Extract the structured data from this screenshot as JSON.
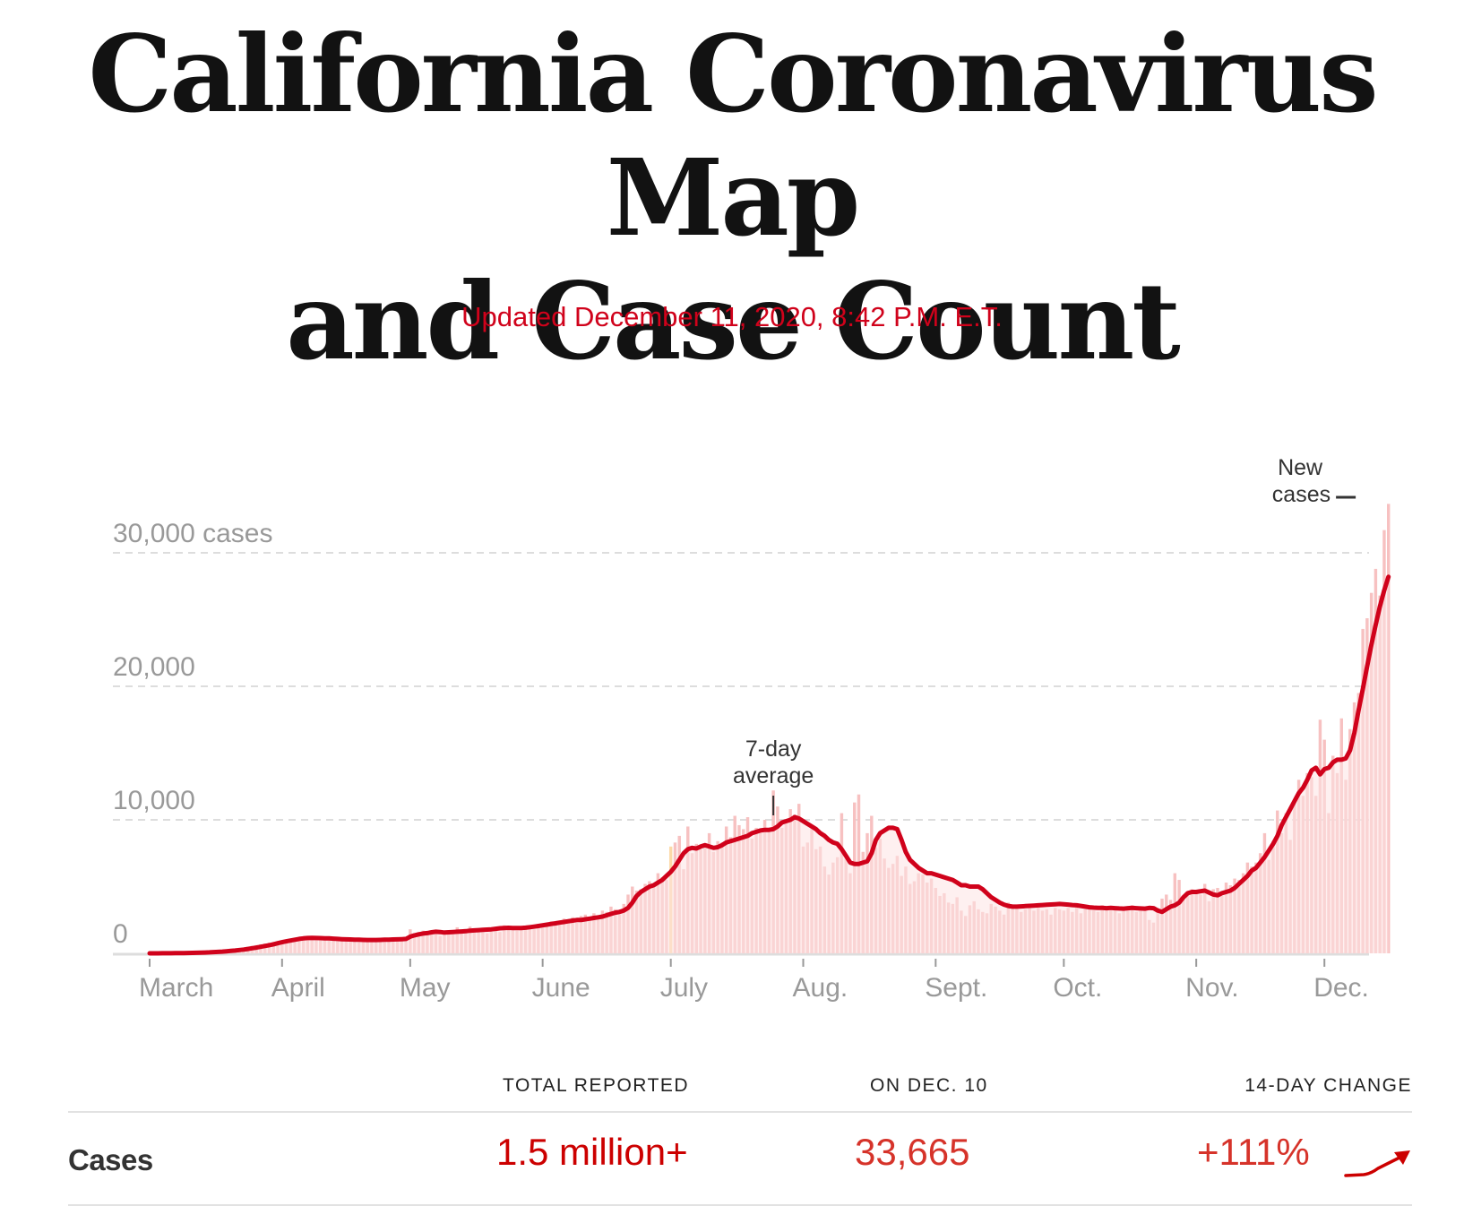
{
  "page": {
    "title_line1": "California Coronavirus Map",
    "title_line2": "and Case Count",
    "updated": "Updated December 11, 2020, 8:42 P.M. E.T."
  },
  "colors": {
    "accent_red": "#d0021b",
    "bar_fill": "#f7c1c1",
    "under_curve_fill": "#fde3e3",
    "highlight_bar": "#fcd9a8",
    "grid": "#dddddd",
    "axis_text": "#999999"
  },
  "chart_data": {
    "type": "bar",
    "title": "",
    "xlabel": "",
    "ylabel": "cases",
    "ylim": [
      0,
      34000
    ],
    "grid": true,
    "start_date": "March 1",
    "end_date": "December 10",
    "y_ticks": [
      {
        "value": 0,
        "label": "0"
      },
      {
        "value": 10000,
        "label": "10,000"
      },
      {
        "value": 20000,
        "label": "20,000"
      },
      {
        "value": 30000,
        "label": "30,000 cases"
      }
    ],
    "x_ticks": [
      {
        "day": 0,
        "label": "March"
      },
      {
        "day": 31,
        "label": "April"
      },
      {
        "day": 61,
        "label": "May"
      },
      {
        "day": 92,
        "label": "June"
      },
      {
        "day": 122,
        "label": "July"
      },
      {
        "day": 153,
        "label": "Aug."
      },
      {
        "day": 184,
        "label": "Sept."
      },
      {
        "day": 214,
        "label": "Oct."
      },
      {
        "day": 245,
        "label": "Nov."
      },
      {
        "day": 275,
        "label": "Dec."
      }
    ],
    "annotations": [
      {
        "text_lines": [
          "7-day",
          "average"
        ],
        "day": 146,
        "series": "7-day average"
      },
      {
        "text_lines": [
          "New",
          "cases"
        ],
        "day": 284,
        "series": "New cases"
      }
    ],
    "highlight_day": 122,
    "series": [
      {
        "name": "New cases",
        "kind": "bar",
        "values": [
          0,
          0,
          0,
          10,
          10,
          10,
          20,
          20,
          30,
          30,
          40,
          60,
          70,
          90,
          110,
          130,
          160,
          190,
          230,
          270,
          320,
          380,
          440,
          500,
          560,
          620,
          680,
          740,
          800,
          860,
          900,
          950,
          1000,
          1050,
          1100,
          1150,
          1100,
          1300,
          1200,
          1250,
          1150,
          1200,
          1250,
          1100,
          1200,
          1050,
          1000,
          1100,
          1050,
          980,
          1100,
          1000,
          1030,
          950,
          1100,
          1050,
          1000,
          1150,
          1200,
          1000,
          950,
          1800,
          1500,
          1600,
          1700,
          1500,
          1550,
          1750,
          1300,
          1650,
          1700,
          1400,
          1950,
          1750,
          1600,
          2000,
          1700,
          1650,
          1800,
          1500,
          1900,
          1750,
          1600,
          2100,
          1800,
          1900,
          1700,
          2000,
          1850,
          1950,
          1800,
          2200,
          2100,
          2000,
          2400,
          2300,
          2200,
          2600,
          2500,
          2700,
          2300,
          2800,
          2900,
          2600,
          3000,
          2700,
          3200,
          3100,
          3500,
          3300,
          2900,
          3700,
          4400,
          5000,
          4700,
          4800,
          5200,
          5400,
          5100,
          6000,
          5700,
          5500,
          8000,
          8300,
          8800,
          6300,
          9500,
          7500,
          8200,
          7800,
          8100,
          9000,
          7600,
          8400,
          8300,
          9500,
          8700,
          10300,
          9600,
          9300,
          10200,
          8600,
          9400,
          9000,
          10000,
          9200,
          12200,
          11000,
          9400,
          9800,
          10800,
          10400,
          11200,
          8000,
          8300,
          9400,
          7800,
          8000,
          6500,
          5900,
          6800,
          7200,
          10500,
          7100,
          6000,
          11300,
          11900,
          7600,
          9000,
          10300,
          7900,
          8600,
          7100,
          6400,
          6700,
          7300,
          5800,
          6500,
          5200,
          5400,
          6000,
          5900,
          5300,
          5600,
          4900,
          4300,
          4500,
          3800,
          3700,
          4200,
          3200,
          2800,
          3600,
          3900,
          3300,
          3100,
          3000,
          3700,
          3500,
          3200,
          2900,
          3800,
          3400,
          3600,
          3100,
          3300,
          3700,
          3200,
          3500,
          3200,
          3300,
          2900,
          3400,
          3300,
          3200,
          3400,
          3100,
          3600,
          3000,
          3300,
          3400,
          3200,
          3100,
          3600,
          3300,
          3200,
          3500,
          3000,
          3400,
          3300,
          3600,
          3100,
          3200,
          3500,
          2500,
          2300,
          3400,
          4100,
          4400,
          4000,
          6000,
          5500,
          4300,
          4500,
          4800,
          4500,
          4400,
          5200,
          3900,
          4800,
          4900,
          4300,
          5300,
          5100,
          5600,
          5500,
          6000,
          6800,
          6500,
          6800,
          7500,
          9000,
          7000,
          8400,
          10700,
          9000,
          10500,
          8500,
          11400,
          13000,
          11800,
          13500,
          13200,
          11800,
          17500,
          16000,
          10500,
          14800,
          13500,
          17600,
          13000,
          16800,
          18800,
          19500,
          24300,
          25100,
          27000,
          28800,
          26800,
          31700,
          33665
        ]
      },
      {
        "name": "7-day average",
        "kind": "line",
        "values": [
          0,
          0,
          0,
          5,
          8,
          10,
          14,
          18,
          22,
          28,
          34,
          42,
          50,
          62,
          76,
          92,
          110,
          130,
          155,
          180,
          210,
          245,
          285,
          330,
          380,
          430,
          490,
          550,
          610,
          680,
          760,
          830,
          900,
          960,
          1020,
          1080,
          1120,
          1150,
          1160,
          1150,
          1140,
          1130,
          1120,
          1100,
          1080,
          1060,
          1050,
          1040,
          1030,
          1020,
          1010,
          1000,
          1000,
          1000,
          1010,
          1020,
          1030,
          1040,
          1050,
          1060,
          1080,
          1250,
          1350,
          1420,
          1480,
          1520,
          1580,
          1620,
          1600,
          1560,
          1580,
          1600,
          1620,
          1640,
          1660,
          1700,
          1720,
          1740,
          1760,
          1780,
          1800,
          1840,
          1880,
          1900,
          1910,
          1900,
          1890,
          1900,
          1920,
          1960,
          2000,
          2050,
          2100,
          2150,
          2200,
          2250,
          2300,
          2350,
          2400,
          2450,
          2500,
          2500,
          2550,
          2600,
          2650,
          2700,
          2750,
          2850,
          2950,
          3050,
          3100,
          3200,
          3400,
          3800,
          4300,
          4600,
          4800,
          5000,
          5100,
          5300,
          5500,
          5800,
          6100,
          6500,
          7000,
          7500,
          7800,
          7900,
          7850,
          8000,
          8100,
          8000,
          7900,
          7950,
          8100,
          8300,
          8400,
          8500,
          8600,
          8700,
          8800,
          9000,
          9100,
          9200,
          9250,
          9250,
          9300,
          9500,
          9800,
          9900,
          10000,
          10200,
          10100,
          9900,
          9700,
          9500,
          9300,
          9000,
          8800,
          8500,
          8300,
          8200,
          7800,
          7300,
          6800,
          6700,
          6700,
          6800,
          6900,
          7500,
          8500,
          9000,
          9200,
          9400,
          9400,
          9300,
          8500,
          7600,
          7000,
          6700,
          6400,
          6200,
          6000,
          6000,
          5900,
          5800,
          5700,
          5600,
          5500,
          5300,
          5100,
          5100,
          5000,
          5000,
          5000,
          4800,
          4500,
          4200,
          4000,
          3800,
          3650,
          3550,
          3500,
          3500,
          3520,
          3540,
          3560,
          3580,
          3600,
          3620,
          3640,
          3660,
          3680,
          3700,
          3680,
          3650,
          3620,
          3600,
          3550,
          3500,
          3450,
          3420,
          3400,
          3400,
          3380,
          3400,
          3380,
          3360,
          3350,
          3380,
          3400,
          3380,
          3360,
          3350,
          3400,
          3380,
          3200,
          3100,
          3300,
          3500,
          3600,
          3800,
          4200,
          4500,
          4600,
          4600,
          4650,
          4700,
          4550,
          4400,
          4350,
          4500,
          4600,
          4700,
          4900,
          5200,
          5500,
          5800,
          6200,
          6400,
          6800,
          7200,
          7700,
          8200,
          8800,
          9600,
          10200,
          10800,
          11400,
          12000,
          12400,
          13000,
          13700,
          13900,
          13400,
          13800,
          13900,
          14300,
          14500,
          14500,
          14600,
          15200,
          16500,
          18200,
          19800,
          21500,
          23100,
          24600,
          26000,
          27200,
          28200
        ]
      }
    ]
  },
  "table": {
    "headers": [
      "TOTAL REPORTED",
      "ON DEC. 10",
      "14-DAY CHANGE"
    ],
    "rows": [
      {
        "label": "Cases",
        "total_reported": "1.5 million+",
        "on_day": "33,665",
        "change_14_day": "+111%",
        "trend_icon": "trend-up-arrow-icon"
      }
    ]
  }
}
